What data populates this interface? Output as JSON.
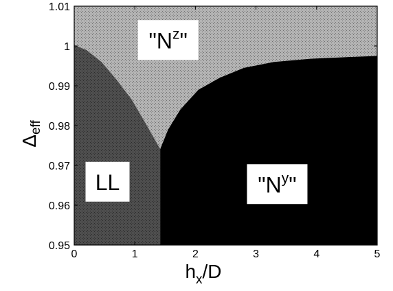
{
  "chart_data": {
    "type": "heatmap",
    "title": "",
    "xlabel": {
      "main": "h",
      "sub": "x",
      "rest": "/D"
    },
    "ylabel": {
      "main": "Δ",
      "sub": "eff"
    },
    "xlim": [
      0,
      5
    ],
    "ylim": [
      0.95,
      1.01
    ],
    "x_ticks": [
      "0",
      "1",
      "2",
      "3",
      "4",
      "5"
    ],
    "y_ticks": [
      "0.95",
      "0.96",
      "0.97",
      "0.98",
      "0.99",
      "1",
      "1.01"
    ],
    "regions": [
      {
        "name": "LL",
        "label_main": "LL",
        "label_sup": "",
        "color": "#4a4a4a",
        "label_pos": [
          0.55,
          0.9659
        ]
      },
      {
        "name": "Nz",
        "label_main": "\"N",
        "label_sup": "z",
        "label_end": "\"",
        "color": "#a8a8a8",
        "label_pos": [
          1.55,
          1.0015
        ]
      },
      {
        "name": "Ny",
        "label_main": "\"N",
        "label_sup": "y",
        "label_end": "\"",
        "color": "#000000",
        "label_pos": [
          3.35,
          0.9653
        ]
      }
    ],
    "boundary_LL_Nz": [
      [
        0.0,
        1.0002
      ],
      [
        0.2,
        0.999
      ],
      [
        0.45,
        0.996
      ],
      [
        0.7,
        0.9915
      ],
      [
        0.95,
        0.9865
      ],
      [
        1.2,
        0.98
      ],
      [
        1.42,
        0.9741
      ]
    ],
    "boundary_LL_Ny": [
      [
        1.42,
        0.9741
      ],
      [
        1.42,
        0.95
      ]
    ],
    "boundary_Nz_Ny": [
      [
        1.42,
        0.9741
      ],
      [
        1.55,
        0.979
      ],
      [
        1.75,
        0.984
      ],
      [
        2.05,
        0.989
      ],
      [
        2.4,
        0.992
      ],
      [
        2.8,
        0.9945
      ],
      [
        3.3,
        0.996
      ],
      [
        3.9,
        0.9968
      ],
      [
        4.5,
        0.9972
      ],
      [
        5.0,
        0.9975
      ]
    ]
  }
}
